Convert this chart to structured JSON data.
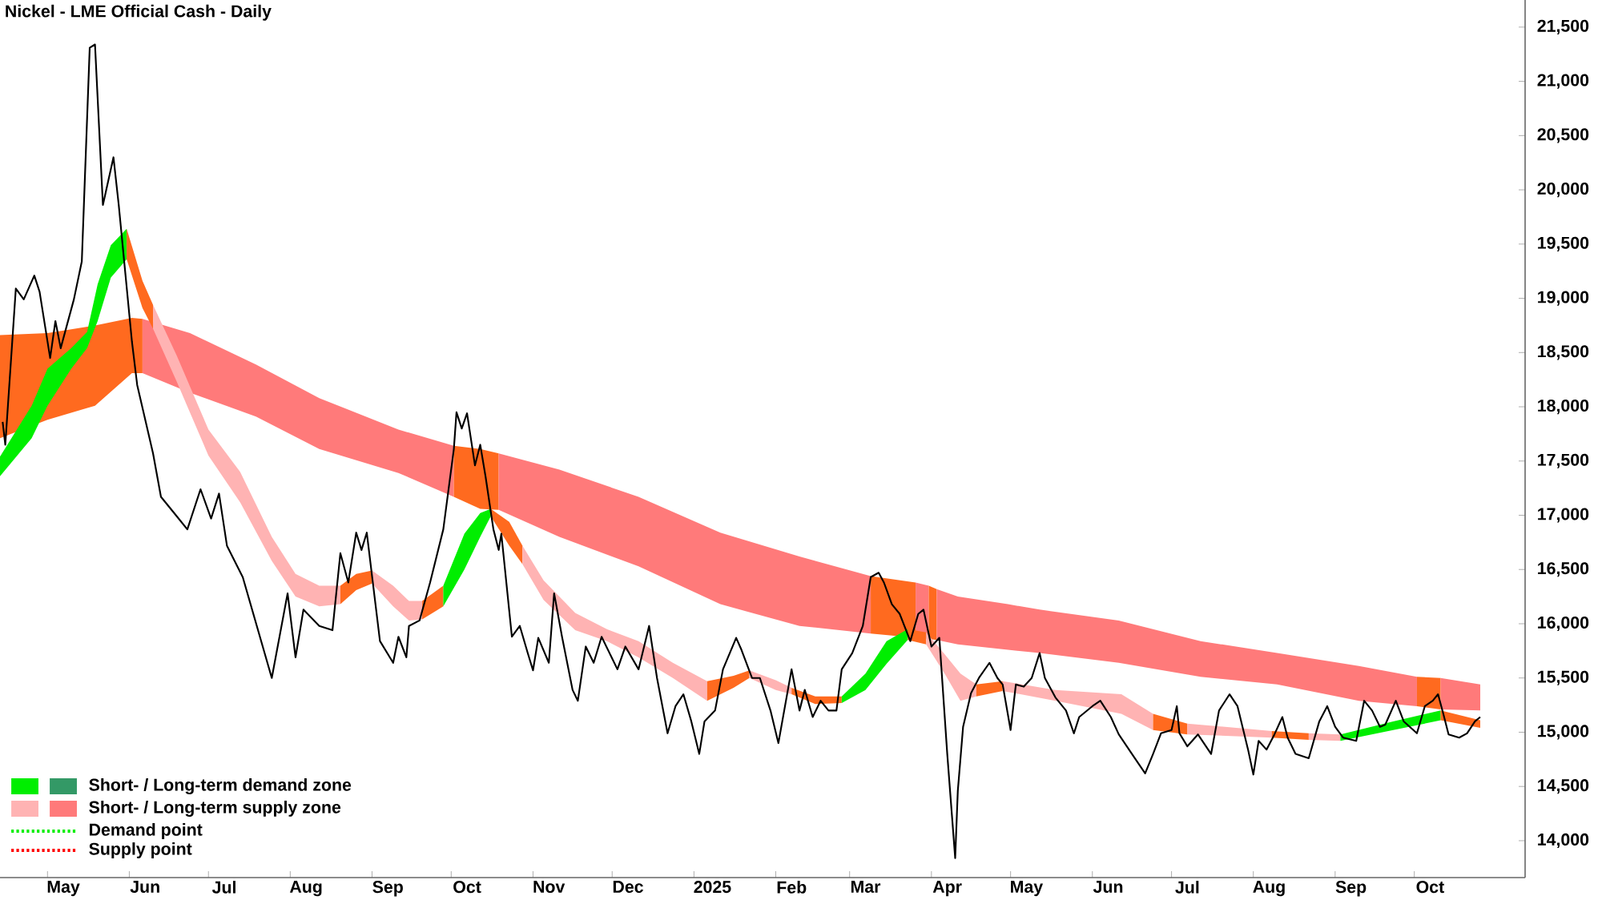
{
  "chart_data": {
    "type": "line",
    "title": "Nickel - LME Official Cash - Daily",
    "xlim": [
      "2024-04-13",
      "2025-11-12"
    ],
    "ylim": [
      13660,
      21750
    ],
    "xticks": [
      {
        "value": "2024-05-01",
        "label": null
      },
      {
        "value": "2024-05-07",
        "label": "May"
      },
      {
        "value": "2024-06-01",
        "label": null
      },
      {
        "value": "2024-06-07",
        "label": "Jun"
      },
      {
        "value": "2024-07-01",
        "label": null
      },
      {
        "value": "2024-07-07",
        "label": "Jul"
      },
      {
        "value": "2024-08-01",
        "label": null
      },
      {
        "value": "2024-08-07",
        "label": "Aug"
      },
      {
        "value": "2024-09-01",
        "label": null
      },
      {
        "value": "2024-09-07",
        "label": "Sep"
      },
      {
        "value": "2024-10-01",
        "label": null
      },
      {
        "value": "2024-10-07",
        "label": "Oct"
      },
      {
        "value": "2024-11-01",
        "label": null
      },
      {
        "value": "2024-11-07",
        "label": "Nov"
      },
      {
        "value": "2024-12-01",
        "label": null
      },
      {
        "value": "2024-12-07",
        "label": "Dec"
      },
      {
        "value": "2025-01-01",
        "label": null
      },
      {
        "value": "2025-01-08",
        "label": "2025"
      },
      {
        "value": "2025-02-01",
        "label": null
      },
      {
        "value": "2025-02-07",
        "label": "Feb"
      },
      {
        "value": "2025-03-01",
        "label": null
      },
      {
        "value": "2025-03-07",
        "label": "Mar"
      },
      {
        "value": "2025-04-01",
        "label": null
      },
      {
        "value": "2025-04-07",
        "label": "Apr"
      },
      {
        "value": "2025-05-01",
        "label": null
      },
      {
        "value": "2025-05-07",
        "label": "May"
      },
      {
        "value": "2025-06-01",
        "label": null
      },
      {
        "value": "2025-06-07",
        "label": "Jun"
      },
      {
        "value": "2025-07-01",
        "label": null
      },
      {
        "value": "2025-07-07",
        "label": "Jul"
      },
      {
        "value": "2025-08-01",
        "label": null
      },
      {
        "value": "2025-08-07",
        "label": "Aug"
      },
      {
        "value": "2025-09-01",
        "label": null
      },
      {
        "value": "2025-09-07",
        "label": "Sep"
      },
      {
        "value": "2025-10-01",
        "label": null
      },
      {
        "value": "2025-10-07",
        "label": "Oct"
      }
    ],
    "yticks": [
      {
        "value": 14000,
        "label": "14,000"
      },
      {
        "value": 14500,
        "label": "14,500"
      },
      {
        "value": 15000,
        "label": "15,000"
      },
      {
        "value": 15500,
        "label": "15,500"
      },
      {
        "value": 16000,
        "label": "16,000"
      },
      {
        "value": 16500,
        "label": "16,500"
      },
      {
        "value": 17000,
        "label": "17,000"
      },
      {
        "value": 17500,
        "label": "17,500"
      },
      {
        "value": 18000,
        "label": "18,000"
      },
      {
        "value": 18500,
        "label": "18,500"
      },
      {
        "value": 19000,
        "label": "19,000"
      },
      {
        "value": 19500,
        "label": "19,500"
      },
      {
        "value": 20000,
        "label": "20,000"
      },
      {
        "value": 20500,
        "label": "20,500"
      },
      {
        "value": 21000,
        "label": "21,000"
      },
      {
        "value": 21500,
        "label": "21,500"
      }
    ],
    "annotations": [
      "Short- / Long-term demand zone",
      "Short- / Long-term supply zone",
      "Demand point",
      "Supply point"
    ],
    "series": [
      {
        "type": "line",
        "color": "#000000",
        "x": [
          "2024-04-14",
          "2024-04-15",
          "2024-04-19",
          "2024-04-22",
          "2024-04-26",
          "2024-04-28",
          "2024-05-02",
          "2024-05-04",
          "2024-05-06",
          "2024-05-11",
          "2024-05-14",
          "2024-05-17",
          "2024-05-19",
          "2024-05-22",
          "2024-05-26",
          "2024-05-28",
          "2024-06-02",
          "2024-06-04",
          "2024-06-10",
          "2024-06-13",
          "2024-06-18",
          "2024-06-23",
          "2024-06-28",
          "2024-07-02",
          "2024-07-05",
          "2024-07-08",
          "2024-07-14",
          "2024-07-25",
          "2024-07-31",
          "2024-08-03",
          "2024-08-06",
          "2024-08-12",
          "2024-08-17",
          "2024-08-20",
          "2024-08-23",
          "2024-08-26",
          "2024-08-28",
          "2024-08-30",
          "2024-09-04",
          "2024-09-09",
          "2024-09-11",
          "2024-09-14",
          "2024-09-15",
          "2024-09-19",
          "2024-09-23",
          "2024-09-28",
          "2024-10-02",
          "2024-10-03",
          "2024-10-05",
          "2024-10-07",
          "2024-10-10",
          "2024-10-12",
          "2024-10-14",
          "2024-10-17",
          "2024-10-19",
          "2024-10-20",
          "2024-10-24",
          "2024-10-27",
          "2024-10-30",
          "2024-11-01",
          "2024-11-03",
          "2024-11-07",
          "2024-11-09",
          "2024-11-12",
          "2024-11-16",
          "2024-11-18",
          "2024-11-21",
          "2024-11-24",
          "2024-11-27",
          "2024-12-03",
          "2024-12-06",
          "2024-12-11",
          "2024-12-15",
          "2024-12-18",
          "2024-12-22",
          "2024-12-25",
          "2024-12-28",
          "2024-12-31",
          "2025-01-03",
          "2025-01-05",
          "2025-01-09",
          "2025-01-12",
          "2025-01-17",
          "2025-01-19",
          "2025-01-23",
          "2025-01-26",
          "2025-01-30",
          "2025-02-02",
          "2025-02-07",
          "2025-02-10",
          "2025-02-12",
          "2025-02-15",
          "2025-02-18",
          "2025-02-21",
          "2025-02-24",
          "2025-02-26",
          "2025-03-02",
          "2025-03-06",
          "2025-03-09",
          "2025-03-12",
          "2025-03-14",
          "2025-03-17",
          "2025-03-20",
          "2025-03-24",
          "2025-03-27",
          "2025-03-29",
          "2025-04-01",
          "2025-04-04",
          "2025-04-07",
          "2025-04-10",
          "2025-04-11",
          "2025-04-13",
          "2025-04-16",
          "2025-04-19",
          "2025-04-23",
          "2025-04-26",
          "2025-04-28",
          "2025-05-01",
          "2025-05-03",
          "2025-05-06",
          "2025-05-09",
          "2025-05-12",
          "2025-05-14",
          "2025-05-18",
          "2025-05-22",
          "2025-05-25",
          "2025-05-27",
          "2025-06-01",
          "2025-06-04",
          "2025-06-08",
          "2025-06-11",
          "2025-06-16",
          "2025-06-21",
          "2025-06-24",
          "2025-06-27",
          "2025-07-01",
          "2025-07-03",
          "2025-07-04",
          "2025-07-07",
          "2025-07-11",
          "2025-07-16",
          "2025-07-19",
          "2025-07-23",
          "2025-07-26",
          "2025-07-30",
          "2025-08-01",
          "2025-08-03",
          "2025-08-06",
          "2025-08-09",
          "2025-08-12",
          "2025-08-14",
          "2025-08-17",
          "2025-08-22",
          "2025-08-26",
          "2025-08-29",
          "2025-09-01",
          "2025-09-04",
          "2025-09-09",
          "2025-09-12",
          "2025-09-15",
          "2025-09-18",
          "2025-09-20",
          "2025-09-24",
          "2025-09-27",
          "2025-10-02",
          "2025-10-05",
          "2025-10-08",
          "2025-10-10",
          "2025-10-12",
          "2025-10-14",
          "2025-10-18",
          "2025-10-21",
          "2025-10-24",
          "2025-10-26"
        ],
        "values": [
          17860,
          17650,
          19090,
          18990,
          19210,
          19060,
          18450,
          18790,
          18540,
          18990,
          19340,
          21310,
          21340,
          19860,
          20300,
          19860,
          18600,
          18200,
          17570,
          17170,
          17020,
          16870,
          17240,
          16970,
          17200,
          16720,
          16430,
          15500,
          16280,
          15690,
          16130,
          15980,
          15940,
          16650,
          16380,
          16840,
          16680,
          16840,
          15840,
          15640,
          15880,
          15690,
          15980,
          16030,
          16380,
          16870,
          17610,
          17950,
          17800,
          17940,
          17460,
          17650,
          17360,
          16870,
          16680,
          16830,
          15880,
          15980,
          15730,
          15570,
          15870,
          15640,
          16280,
          15880,
          15390,
          15290,
          15790,
          15640,
          15880,
          15580,
          15790,
          15580,
          15980,
          15500,
          14990,
          15240,
          15350,
          15100,
          14800,
          15100,
          15200,
          15580,
          15870,
          15760,
          15500,
          15500,
          15200,
          14900,
          15580,
          15200,
          15390,
          15140,
          15290,
          15200,
          15200,
          15580,
          15730,
          15980,
          16430,
          16470,
          16380,
          16180,
          16090,
          15840,
          16090,
          16130,
          15790,
          15870,
          14800,
          13840,
          14460,
          15050,
          15360,
          15500,
          15640,
          15500,
          15440,
          15020,
          15440,
          15420,
          15500,
          15730,
          15500,
          15320,
          15200,
          14990,
          15140,
          15240,
          15290,
          15140,
          14980,
          14800,
          14620,
          14800,
          14990,
          15020,
          15240,
          14990,
          14870,
          14980,
          14800,
          15200,
          15350,
          15240,
          14840,
          14610,
          14920,
          14840,
          14980,
          15140,
          14950,
          14800,
          14760,
          15100,
          15240,
          15050,
          14950,
          14920,
          15290,
          15200,
          15050,
          15070,
          15290,
          15100,
          14990,
          15240,
          15290,
          15350,
          15170,
          14980,
          14950,
          14990,
          15100,
          15140
        ]
      },
      {
        "type": "area",
        "color": "#ff6a1f",
        "x": [
          "2024-04-13",
          "2024-05-01",
          "2024-05-19",
          "2024-06-02",
          "2024-06-06"
        ],
        "values": [
          null,
          null,
          null,
          null,
          null
        ],
        "lower": [
          17710,
          17880,
          18010,
          18310,
          18310
        ],
        "upper": [
          18660,
          18680,
          18750,
          18820,
          18810
        ]
      },
      {
        "type": "area",
        "color": "#ff7a7a",
        "x": [
          "2024-06-06",
          "2024-06-24",
          "2024-07-19",
          "2024-08-12",
          "2024-09-11",
          "2024-10-02"
        ],
        "values": [
          null,
          null,
          null,
          null,
          null,
          null
        ],
        "lower": [
          18310,
          18130,
          17910,
          17610,
          17390,
          17170
        ],
        "upper": [
          18810,
          18680,
          18390,
          18080,
          17790,
          17640
        ]
      },
      {
        "type": "area",
        "color": "#ff6a1f",
        "x": [
          "2024-10-02",
          "2024-10-12",
          "2024-10-19"
        ],
        "values": [
          null,
          null,
          null
        ],
        "lower": [
          17170,
          17060,
          17050
        ],
        "upper": [
          17640,
          17610,
          17570
        ]
      },
      {
        "type": "area",
        "color": "#ff7a7a",
        "x": [
          "2024-10-19",
          "2024-11-11",
          "2024-12-11",
          "2025-01-11",
          "2025-02-10",
          "2025-03-09"
        ],
        "values": [
          null,
          null,
          null,
          null,
          null,
          null
        ],
        "lower": [
          17050,
          16800,
          16530,
          16180,
          15980,
          15910
        ],
        "upper": [
          17570,
          17420,
          17170,
          16840,
          16620,
          16440
        ]
      },
      {
        "type": "area",
        "color": "#ff6a1f",
        "x": [
          "2025-03-09",
          "2025-03-26"
        ],
        "values": [
          null,
          null
        ],
        "lower": [
          15910,
          15870
        ],
        "upper": [
          16440,
          16380
        ]
      },
      {
        "type": "area",
        "color": "#ff7a7a",
        "x": [
          "2025-03-26",
          "2025-03-31"
        ],
        "values": [
          null,
          null
        ],
        "lower": [
          15870,
          15860
        ],
        "upper": [
          16380,
          16350
        ]
      },
      {
        "type": "area",
        "color": "#ff6a1f",
        "x": [
          "2025-03-31",
          "2025-04-03"
        ],
        "values": [
          null,
          null
        ],
        "lower": [
          15860,
          15850
        ],
        "upper": [
          16350,
          16320
        ]
      },
      {
        "type": "area",
        "color": "#ff7a7a",
        "x": [
          "2025-04-03",
          "2025-04-11",
          "2025-04-30",
          "2025-05-12",
          "2025-06-11",
          "2025-07-12",
          "2025-08-10",
          "2025-09-10",
          "2025-10-02"
        ],
        "values": [
          null,
          null,
          null,
          null,
          null,
          null,
          null,
          null,
          null
        ],
        "lower": [
          15850,
          15810,
          15760,
          15730,
          15640,
          15510,
          15440,
          15290,
          15240
        ],
        "upper": [
          16320,
          16250,
          16180,
          16130,
          16030,
          15840,
          15730,
          15610,
          15510
        ]
      },
      {
        "type": "area",
        "color": "#ff6a1f",
        "x": [
          "2025-10-02",
          "2025-10-11"
        ],
        "values": [
          null,
          null
        ],
        "lower": [
          15240,
          15210
        ],
        "upper": [
          15510,
          15500
        ]
      },
      {
        "type": "area",
        "color": "#ff7a7a",
        "x": [
          "2025-10-11",
          "2025-10-26"
        ],
        "values": [
          null,
          null
        ],
        "lower": [
          15210,
          15200
        ],
        "upper": [
          15500,
          15440
        ]
      },
      {
        "type": "area",
        "color": "#00ee00",
        "x": [
          "2024-04-13",
          "2024-04-25",
          "2024-05-01",
          "2024-05-10",
          "2024-05-16",
          "2024-05-20",
          "2024-05-25",
          "2024-05-31"
        ],
        "values": [
          null,
          null,
          null,
          null,
          null,
          null,
          null,
          null
        ],
        "lower": [
          17360,
          17710,
          18010,
          18350,
          18540,
          18790,
          19190,
          19360
        ],
        "upper": [
          17540,
          18010,
          18350,
          18540,
          18690,
          19130,
          19490,
          19640
        ]
      },
      {
        "type": "area",
        "color": "#ff6a1f",
        "x": [
          "2024-05-31",
          "2024-06-06",
          "2024-06-10"
        ],
        "values": [
          null,
          null,
          null
        ],
        "lower": [
          19360,
          18910,
          18720
        ],
        "upper": [
          19640,
          19160,
          18940
        ]
      },
      {
        "type": "area",
        "color": "#ffb3b3",
        "x": [
          "2024-06-10",
          "2024-06-19",
          "2024-07-01",
          "2024-07-13",
          "2024-07-25",
          "2024-08-03",
          "2024-08-12",
          "2024-08-20"
        ],
        "values": [
          null,
          null,
          null,
          null,
          null,
          null,
          null,
          null
        ],
        "lower": [
          18720,
          18230,
          17550,
          17120,
          16580,
          16250,
          16160,
          16180
        ],
        "upper": [
          18940,
          18470,
          17790,
          17400,
          16800,
          16460,
          16350,
          16350
        ]
      },
      {
        "type": "area",
        "color": "#ff6a1f",
        "x": [
          "2024-08-20",
          "2024-08-26",
          "2024-09-01"
        ],
        "values": [
          null,
          null,
          null
        ],
        "lower": [
          16180,
          16310,
          16370
        ],
        "upper": [
          16350,
          16460,
          16490
        ]
      },
      {
        "type": "area",
        "color": "#ffb3b3",
        "x": [
          "2024-09-01",
          "2024-09-09",
          "2024-09-15",
          "2024-09-20"
        ],
        "values": [
          null,
          null,
          null,
          null
        ],
        "lower": [
          16370,
          16160,
          16030,
          16040
        ],
        "upper": [
          16490,
          16350,
          16210,
          16210
        ]
      },
      {
        "type": "area",
        "color": "#ff6a1f",
        "x": [
          "2024-09-20",
          "2024-09-28"
        ],
        "values": [
          null,
          null
        ],
        "lower": [
          16040,
          16160
        ],
        "upper": [
          16210,
          16350
        ]
      },
      {
        "type": "area",
        "color": "#00ee00",
        "x": [
          "2024-09-28",
          "2024-10-06",
          "2024-10-12",
          "2024-10-16"
        ],
        "values": [
          null,
          null,
          null,
          null
        ],
        "lower": [
          16160,
          16500,
          16800,
          16990
        ],
        "upper": [
          16350,
          16830,
          17020,
          17060
        ]
      },
      {
        "type": "area",
        "color": "#ff6a1f",
        "x": [
          "2024-10-16",
          "2024-10-23",
          "2024-10-28"
        ],
        "values": [
          null,
          null,
          null
        ],
        "lower": [
          16990,
          16720,
          16550
        ],
        "upper": [
          17060,
          16940,
          16720
        ]
      },
      {
        "type": "area",
        "color": "#ffb3b3",
        "x": [
          "2024-10-28",
          "2024-11-05",
          "2024-11-17",
          "2024-11-29",
          "2024-12-11",
          "2024-12-24",
          "2025-01-06"
        ],
        "values": [
          null,
          null,
          null,
          null,
          null,
          null,
          null
        ],
        "lower": [
          16550,
          16220,
          15940,
          15840,
          15690,
          15500,
          15290
        ],
        "upper": [
          16720,
          16400,
          16100,
          15950,
          15840,
          15640,
          15470
        ]
      },
      {
        "type": "area",
        "color": "#ff6a1f",
        "x": [
          "2025-01-06",
          "2025-01-16",
          "2025-01-22"
        ],
        "values": [
          null,
          null,
          null
        ],
        "lower": [
          15290,
          15410,
          15500
        ],
        "upper": [
          15470,
          15520,
          15570
        ]
      },
      {
        "type": "area",
        "color": "#ffb3b3",
        "x": [
          "2025-01-22",
          "2025-02-01",
          "2025-02-07"
        ],
        "values": [
          null,
          null,
          null
        ],
        "lower": [
          15500,
          15390,
          15350
        ],
        "upper": [
          15570,
          15480,
          15410
        ]
      },
      {
        "type": "area",
        "color": "#ff6a1f",
        "x": [
          "2025-02-07",
          "2025-02-16",
          "2025-02-26"
        ],
        "values": [
          null,
          null,
          null
        ],
        "lower": [
          15350,
          15260,
          15270
        ],
        "upper": [
          15410,
          15330,
          15330
        ]
      },
      {
        "type": "area",
        "color": "#00ee00",
        "x": [
          "2025-02-26",
          "2025-03-07",
          "2025-03-15",
          "2025-03-23"
        ],
        "values": [
          null,
          null,
          null,
          null
        ],
        "lower": [
          15270,
          15390,
          15630,
          15850
        ],
        "upper": [
          15330,
          15540,
          15840,
          15950
        ]
      },
      {
        "type": "area",
        "color": "#ff6a1f",
        "x": [
          "2025-03-23",
          "2025-03-30"
        ],
        "values": [
          null,
          null
        ],
        "lower": [
          15850,
          15810
        ],
        "upper": [
          15950,
          15920
        ]
      },
      {
        "type": "area",
        "color": "#ffb3b3",
        "x": [
          "2025-03-30",
          "2025-04-06",
          "2025-04-12",
          "2025-04-18"
        ],
        "values": [
          null,
          null,
          null,
          null
        ],
        "lower": [
          15810,
          15540,
          15290,
          15330
        ],
        "upper": [
          15920,
          15720,
          15540,
          15440
        ]
      },
      {
        "type": "area",
        "color": "#ff6a1f",
        "x": [
          "2025-04-18",
          "2025-04-28"
        ],
        "values": [
          null,
          null
        ],
        "lower": [
          15330,
          15380
        ],
        "upper": [
          15440,
          15470
        ]
      },
      {
        "type": "area",
        "color": "#ffb3b3",
        "x": [
          "2025-04-28",
          "2025-05-18",
          "2025-06-12",
          "2025-06-24"
        ],
        "values": [
          null,
          null,
          null,
          null
        ],
        "lower": [
          15380,
          15290,
          15170,
          15020
        ],
        "upper": [
          15470,
          15390,
          15350,
          15170
        ]
      },
      {
        "type": "area",
        "color": "#ff6a1f",
        "x": [
          "2025-06-24",
          "2025-07-07"
        ],
        "values": [
          null,
          null
        ],
        "lower": [
          15020,
          14980
        ],
        "upper": [
          15170,
          15080
        ]
      },
      {
        "type": "area",
        "color": "#ffb3b3",
        "x": [
          "2025-07-07",
          "2025-08-08"
        ],
        "values": [
          null,
          null
        ],
        "lower": [
          14980,
          14950
        ],
        "upper": [
          15080,
          15010
        ]
      },
      {
        "type": "area",
        "color": "#ff6a1f",
        "x": [
          "2025-08-08",
          "2025-08-22"
        ],
        "values": [
          null,
          null
        ],
        "lower": [
          14950,
          14930
        ],
        "upper": [
          15010,
          14990
        ]
      },
      {
        "type": "area",
        "color": "#ffb3b3",
        "x": [
          "2025-08-22",
          "2025-09-03"
        ],
        "values": [
          null,
          null
        ],
        "lower": [
          14930,
          14920
        ],
        "upper": [
          14990,
          14980
        ]
      },
      {
        "type": "area",
        "color": "#00ee00",
        "x": [
          "2025-09-03",
          "2025-09-23",
          "2025-10-11"
        ],
        "values": [
          null,
          null,
          null
        ],
        "lower": [
          14920,
          15020,
          15110
        ],
        "upper": [
          14980,
          15100,
          15200
        ]
      },
      {
        "type": "area",
        "color": "#ff6a1f",
        "x": [
          "2025-10-11",
          "2025-10-26"
        ],
        "values": [
          null,
          null
        ],
        "lower": [
          15110,
          15040
        ],
        "upper": [
          15200,
          15110
        ]
      }
    ]
  }
}
